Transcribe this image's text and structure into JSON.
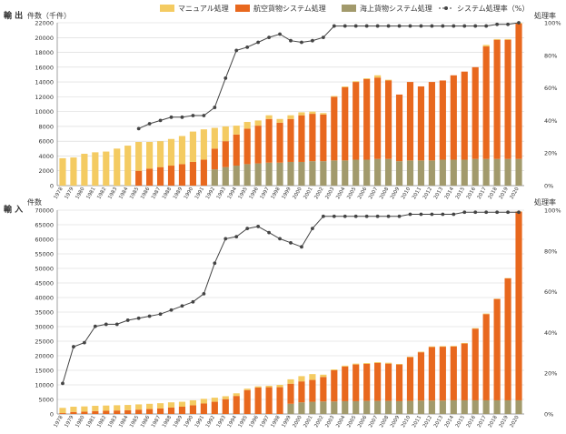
{
  "legend": {
    "manual": "マニュアル処理",
    "air": "航空貨物システム処理",
    "sea": "海上貨物システム処理",
    "rate": "システム処理率（%）"
  },
  "colors": {
    "manual": "#f4cb62",
    "air": "#e8681e",
    "sea": "#a29a6c",
    "rate": "#444444",
    "grid": "#d6d6d6"
  },
  "chart_data": [
    {
      "type": "bar",
      "stacked": true,
      "section_title": "輸 出",
      "ylabel": "件数（千件）",
      "y2label": "処理率",
      "ylim": [
        0,
        22000
      ],
      "y2lim": [
        0,
        100
      ],
      "yticks": [
        "0",
        "2000",
        "4000",
        "6000",
        "8000",
        "10000",
        "12000",
        "14000",
        "16000",
        "18000",
        "20000",
        "22000"
      ],
      "y2ticks": [
        "0%",
        "20%",
        "40%",
        "60%",
        "80%",
        "100%"
      ],
      "categories": [
        "1978",
        "1979",
        "1980",
        "1981",
        "1982",
        "1983",
        "1984",
        "1985",
        "1986",
        "1987",
        "1988",
        "1989",
        "1990",
        "1991",
        "1992",
        "1993",
        "1994",
        "1995",
        "1996",
        "1997",
        "1998",
        "1999",
        "2000",
        "2001",
        "2002",
        "2003",
        "2004",
        "2005",
        "2006",
        "2007",
        "2008",
        "2009",
        "2010",
        "2011",
        "2012",
        "2013",
        "2014",
        "2015",
        "2016",
        "2017",
        "2018",
        "2019",
        "2020"
      ],
      "series": [
        {
          "name": "海上貨物システム処理",
          "key": "sea",
          "values": [
            0,
            0,
            0,
            0,
            0,
            0,
            0,
            0,
            0,
            0,
            0,
            0,
            0,
            0,
            2200,
            2500,
            2700,
            2900,
            3000,
            3100,
            3100,
            3200,
            3200,
            3300,
            3300,
            3400,
            3400,
            3500,
            3500,
            3600,
            3600,
            3300,
            3400,
            3400,
            3400,
            3500,
            3500,
            3500,
            3600,
            3600,
            3600,
            3600,
            3600
          ]
        },
        {
          "name": "航空貨物システム処理",
          "key": "air",
          "values": [
            0,
            0,
            0,
            0,
            0,
            0,
            0,
            2000,
            2300,
            2500,
            2700,
            2900,
            3200,
            3500,
            2800,
            3500,
            4200,
            4800,
            5100,
            5900,
            5400,
            5800,
            6300,
            6400,
            6300,
            8600,
            9900,
            10500,
            10900,
            11000,
            10600,
            9000,
            10600,
            10000,
            10600,
            10700,
            11400,
            11900,
            12400,
            15200,
            16100,
            16100,
            18300
          ]
        },
        {
          "name": "マニュアル処理",
          "key": "manual",
          "values": [
            3700,
            3800,
            4300,
            4500,
            4600,
            5000,
            5400,
            3900,
            3600,
            3500,
            3600,
            3800,
            4100,
            4100,
            2800,
            2000,
            1200,
            900,
            700,
            500,
            500,
            500,
            400,
            300,
            200,
            100,
            100,
            100,
            100,
            300,
            100,
            0,
            0,
            0,
            0,
            0,
            0,
            0,
            0,
            200,
            100,
            100,
            100
          ]
        }
      ],
      "rate": [
        null,
        null,
        null,
        null,
        null,
        null,
        null,
        35,
        38,
        40,
        42,
        42,
        43,
        43,
        48,
        66,
        83,
        85,
        88,
        91,
        93,
        89,
        88,
        89,
        91,
        98,
        98,
        98,
        98,
        98,
        98,
        98,
        98,
        98,
        98,
        98,
        98,
        98,
        98,
        98,
        99,
        99,
        100
      ]
    },
    {
      "type": "bar",
      "stacked": true,
      "section_title": "輸 入",
      "ylabel": "件数",
      "y2label": "処理率",
      "ylim": [
        0,
        70000
      ],
      "y2lim": [
        0,
        100
      ],
      "yticks": [
        "0",
        "5000",
        "10000",
        "15000",
        "20000",
        "25000",
        "30000",
        "35000",
        "40000",
        "45000",
        "50000",
        "55000",
        "60000",
        "65000",
        "70000"
      ],
      "y2ticks": [
        "0%",
        "20%",
        "40%",
        "60%",
        "80%",
        "100%"
      ],
      "categories": [
        "1978",
        "1979",
        "1980",
        "1981",
        "1982",
        "1983",
        "1984",
        "1985",
        "1986",
        "1987",
        "1988",
        "1989",
        "1990",
        "1991",
        "1992",
        "1993",
        "1994",
        "1995",
        "1996",
        "1997",
        "1998",
        "1999",
        "2000",
        "2001",
        "2002",
        "2003",
        "2004",
        "2005",
        "2006",
        "2007",
        "2008",
        "2009",
        "2010",
        "2011",
        "2012",
        "2013",
        "2014",
        "2015",
        "2016",
        "2017",
        "2018",
        "2019",
        "2020"
      ],
      "series": [
        {
          "name": "海上貨物システム処理",
          "key": "sea",
          "values": [
            0,
            0,
            0,
            0,
            0,
            0,
            0,
            0,
            0,
            0,
            0,
            0,
            0,
            0,
            0,
            0,
            0,
            0,
            0,
            0,
            0,
            3500,
            4000,
            4200,
            4300,
            4300,
            4400,
            4400,
            4500,
            4500,
            4500,
            4400,
            4500,
            4600,
            4600,
            4600,
            4700,
            4700,
            4700,
            4700,
            4700,
            4700,
            4700
          ]
        },
        {
          "name": "航空貨物システム処理",
          "key": "air",
          "values": [
            300,
            700,
            800,
            1000,
            1100,
            1200,
            1300,
            1500,
            1700,
            1900,
            2200,
            2500,
            3000,
            3600,
            4200,
            5100,
            6200,
            8200,
            9100,
            9200,
            9200,
            6900,
            7200,
            7500,
            8400,
            10700,
            11900,
            12600,
            12700,
            13000,
            12800,
            12600,
            15000,
            16600,
            18400,
            18500,
            18500,
            19500,
            24600,
            29600,
            34800,
            41900,
            64800
          ]
        },
        {
          "name": "マニュアル処理",
          "key": "manual",
          "values": [
            1800,
            1800,
            1800,
            1800,
            1800,
            1800,
            1800,
            1800,
            1800,
            1800,
            1800,
            1700,
            1700,
            1600,
            1400,
            1000,
            900,
            500,
            400,
            500,
            800,
            1500,
            1800,
            2000,
            800,
            300,
            300,
            300,
            300,
            300,
            300,
            200,
            200,
            200,
            200,
            200,
            200,
            200,
            200,
            200,
            100,
            100,
            100
          ]
        }
      ],
      "rate": [
        15,
        33,
        35,
        43,
        44,
        44,
        46,
        47,
        48,
        49,
        51,
        53,
        55,
        59,
        74,
        86,
        87,
        91,
        92,
        89,
        86,
        84,
        82,
        91,
        97,
        97,
        97,
        97,
        97,
        97,
        97,
        97,
        98,
        98,
        98,
        98,
        98,
        99,
        99,
        99,
        99,
        99,
        99
      ]
    }
  ]
}
